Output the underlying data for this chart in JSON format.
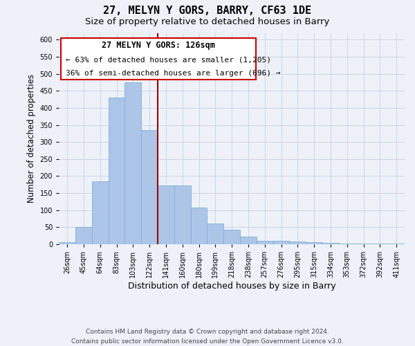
{
  "title": "27, MELYN Y GORS, BARRY, CF63 1DE",
  "subtitle": "Size of property relative to detached houses in Barry",
  "xlabel": "Distribution of detached houses by size in Barry",
  "ylabel": "Number of detached properties",
  "footer_line1": "Contains HM Land Registry data © Crown copyright and database right 2024.",
  "footer_line2": "Contains public sector information licensed under the Open Government Licence v3.0.",
  "categories": [
    "26sqm",
    "45sqm",
    "64sqm",
    "83sqm",
    "103sqm",
    "122sqm",
    "141sqm",
    "160sqm",
    "180sqm",
    "199sqm",
    "218sqm",
    "238sqm",
    "257sqm",
    "276sqm",
    "295sqm",
    "315sqm",
    "334sqm",
    "353sqm",
    "372sqm",
    "392sqm",
    "411sqm"
  ],
  "values": [
    5,
    50,
    185,
    430,
    475,
    335,
    172,
    172,
    107,
    60,
    43,
    22,
    10,
    10,
    7,
    5,
    3,
    2,
    1,
    1,
    1
  ],
  "bar_color": "#adc6e8",
  "bar_edge_color": "#7aafd4",
  "grid_color": "#c8d4e8",
  "background_color": "#eef2f8",
  "vline_color": "#990000",
  "vline_position": 5.5,
  "annotation_title": "27 MELYN Y GORS: 126sqm",
  "annotation_line1": "← 63% of detached houses are smaller (1,205)",
  "annotation_line2": "36% of semi-detached houses are larger (696) →",
  "ylim": [
    0,
    620
  ],
  "yticks": [
    0,
    50,
    100,
    150,
    200,
    250,
    300,
    350,
    400,
    450,
    500,
    550,
    600
  ],
  "title_fontsize": 11,
  "subtitle_fontsize": 9.5,
  "ylabel_fontsize": 8.5,
  "xlabel_fontsize": 9,
  "tick_fontsize": 7,
  "annotation_title_fontsize": 8.5,
  "annotation_text_fontsize": 8,
  "footer_fontsize": 6.5
}
